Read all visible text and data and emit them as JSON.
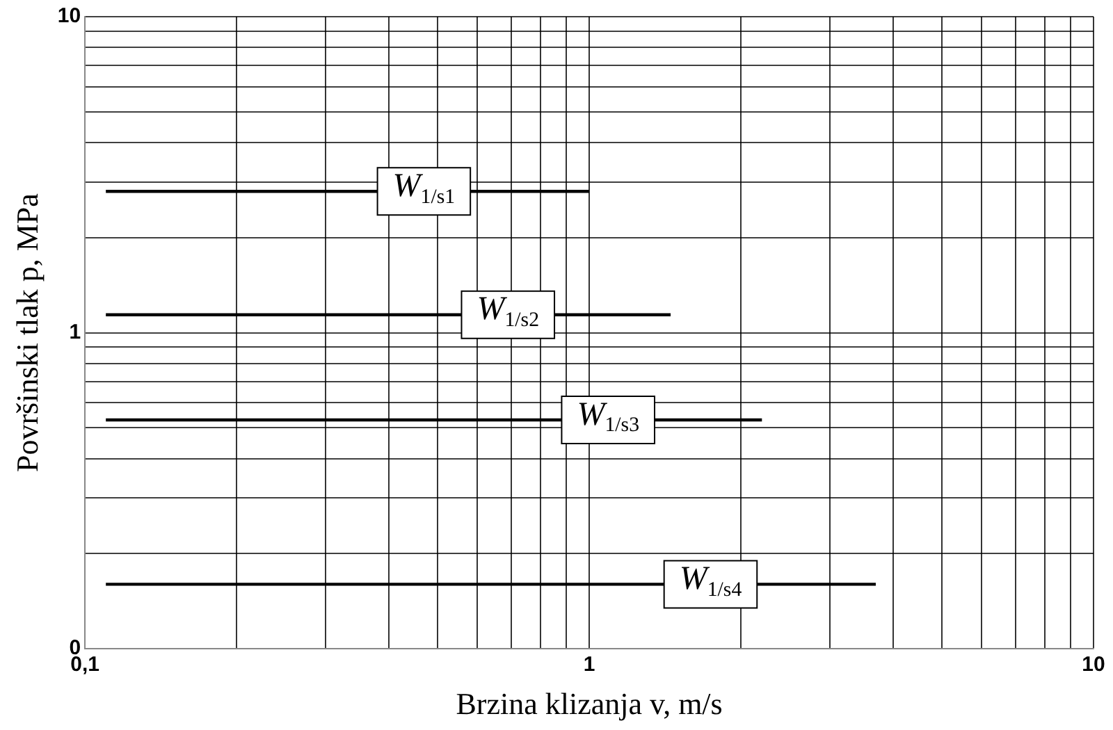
{
  "chart_data": {
    "type": "line",
    "xlabel": "Brzina klizanja v, m/s",
    "ylabel": "Površinski tlak p, MPa",
    "log": "xy",
    "grid": true,
    "legend": false,
    "marker": "none",
    "line_style": "solid",
    "xlim": [
      0.1,
      10
    ],
    "ylim": [
      0.1,
      10
    ],
    "xticks": [
      {
        "value": 0.1,
        "label": "0,1"
      },
      {
        "value": 0.2,
        "label": null
      },
      {
        "value": 0.3,
        "label": null
      },
      {
        "value": 0.4,
        "label": null
      },
      {
        "value": 0.5,
        "label": null
      },
      {
        "value": 0.6,
        "label": null
      },
      {
        "value": 0.7,
        "label": null
      },
      {
        "value": 0.8,
        "label": null
      },
      {
        "value": 0.9,
        "label": null
      },
      1,
      {
        "value": 2,
        "label": null
      },
      {
        "value": 3,
        "label": null
      },
      {
        "value": 4,
        "label": null
      },
      {
        "value": 5,
        "label": null
      },
      {
        "value": 6,
        "label": null
      },
      {
        "value": 7,
        "label": null
      },
      {
        "value": 8,
        "label": null
      },
      {
        "value": 9,
        "label": null
      },
      10
    ],
    "yticks": [
      {
        "value": 0.1,
        "label": "0"
      },
      {
        "value": 0.2,
        "label": null
      },
      {
        "value": 0.3,
        "label": null
      },
      {
        "value": 0.4,
        "label": null
      },
      {
        "value": 0.5,
        "label": null
      },
      {
        "value": 0.6,
        "label": null
      },
      {
        "value": 0.7,
        "label": null
      },
      {
        "value": 0.8,
        "label": null
      },
      {
        "value": 0.9,
        "label": null
      },
      1,
      {
        "value": 2,
        "label": null
      },
      {
        "value": 3,
        "label": null
      },
      {
        "value": 4,
        "label": null
      },
      {
        "value": 5,
        "label": null
      },
      {
        "value": 6,
        "label": null
      },
      {
        "value": 7,
        "label": null
      },
      {
        "value": 8,
        "label": null
      },
      {
        "value": 9,
        "label": null
      },
      10
    ],
    "series": [
      {
        "color": "#000000",
        "x": [
          0.11,
          1.0
        ],
        "values": [
          2.8,
          2.8
        ]
      },
      {
        "color": "#000000",
        "x": [
          0.11,
          1.45
        ],
        "values": [
          1.14,
          1.14
        ]
      },
      {
        "color": "#000000",
        "x": [
          0.11,
          2.2
        ],
        "values": [
          0.53,
          0.53
        ]
      },
      {
        "color": "#000000",
        "x": [
          0.11,
          3.7
        ],
        "values": [
          0.16,
          0.16
        ]
      }
    ],
    "annotations": [
      {
        "text": "W$_{1/s1}$",
        "x": 0.47,
        "y": 2.8
      },
      {
        "text": "W$_{1/s2}$",
        "x": 0.69,
        "y": 1.14
      },
      {
        "text": "W$_{1/s3}$",
        "x": 1.09,
        "y": 0.53
      },
      {
        "text": "W$_{1/s4}$",
        "x": 1.74,
        "y": 0.16
      }
    ]
  }
}
